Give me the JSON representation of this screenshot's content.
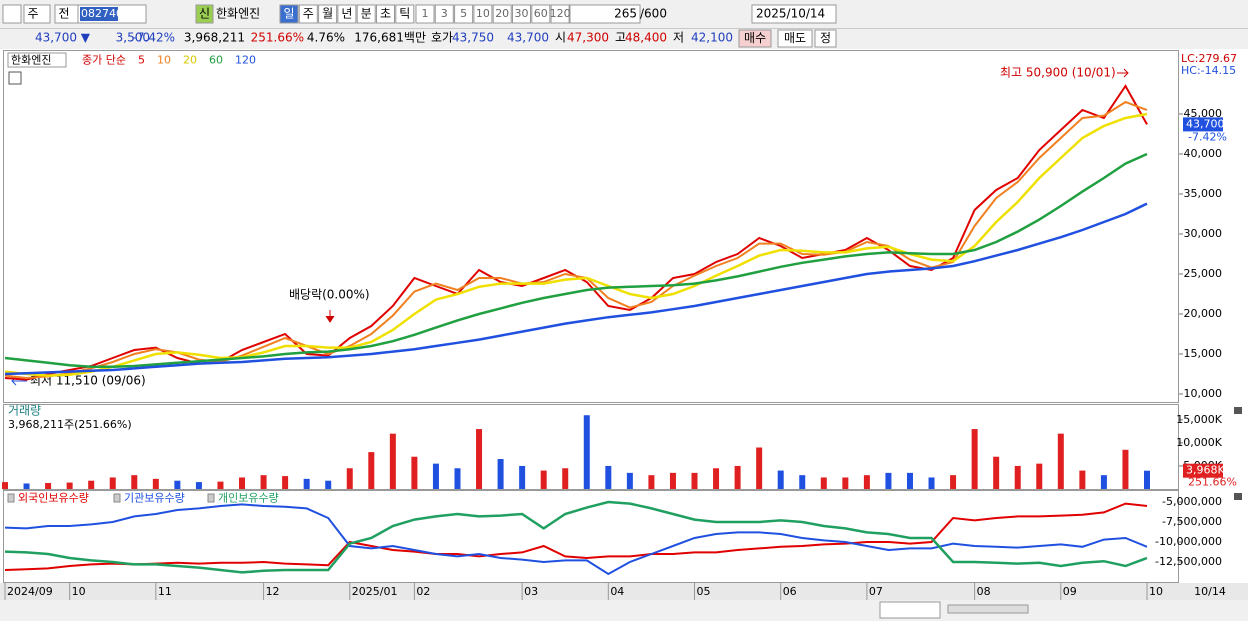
{
  "toolbar": {
    "left_buttons": [
      "주",
      "전"
    ],
    "code": "082740",
    "badge": "신",
    "stock_name": "한화엔진",
    "period_buttons": [
      "일",
      "주",
      "월",
      "년",
      "분",
      "초",
      "틱"
    ],
    "interval_buttons": [
      "1",
      "3",
      "5",
      "10",
      "20",
      "30",
      "60",
      "120"
    ],
    "count": "265",
    "max_count": "/600",
    "date": "2025/10/14"
  },
  "quote": {
    "price": "43,700 ▼",
    "change": "3,500",
    "change_rate": "-7.42%",
    "volume": "3,968,211",
    "volume_ratio": "251.66%",
    "turnover": "4.76%",
    "amount": "176,681백만",
    "ask_label": "호가",
    "ask": "43,750",
    "bid": "43,700",
    "open_label": "시",
    "open": "47,300",
    "high_label": "고",
    "high": "48,400",
    "low_label": "저",
    "low": "42,100",
    "buy": "매수",
    "sell": "매도",
    "correct": "정"
  },
  "chart_data": [
    {
      "type": "line",
      "name": "한화엔진",
      "legend_prefix": "종가 단순",
      "categories": [
        "2024/09",
        null,
        null,
        "10",
        null,
        null,
        null,
        "11",
        null,
        null,
        null,
        null,
        "12",
        null,
        null,
        null,
        "2025/01",
        null,
        null,
        "02",
        null,
        null,
        null,
        null,
        "03",
        null,
        null,
        null,
        "04",
        null,
        null,
        null,
        "05",
        null,
        null,
        null,
        "06",
        null,
        null,
        null,
        "07",
        null,
        null,
        null,
        null,
        "08",
        null,
        null,
        null,
        "09",
        null,
        null,
        null,
        "10"
      ],
      "series": [
        {
          "name": "5",
          "color": "#e00000",
          "values": [
            12000,
            11800,
            12500,
            13000,
            13500,
            14500,
            15500,
            15800,
            14500,
            13800,
            14000,
            15500,
            16500,
            17500,
            15000,
            14800,
            17000,
            18500,
            21000,
            24500,
            23500,
            22500,
            25500,
            24000,
            23500,
            24500,
            25500,
            24000,
            21000,
            20500,
            22000,
            24500,
            25000,
            26500,
            27500,
            29500,
            28500,
            27000,
            27500,
            28000,
            29500,
            28000,
            26000,
            25500,
            27000,
            33000,
            35500,
            37000,
            40500,
            43000,
            45500,
            44500,
            48500,
            43700
          ]
        },
        {
          "name": "10",
          "color": "#f08020",
          "values": [
            12300,
            12000,
            12200,
            12600,
            13200,
            14000,
            15000,
            15600,
            15200,
            14300,
            14000,
            14800,
            15900,
            17000,
            16000,
            15000,
            16000,
            17500,
            19800,
            22800,
            23800,
            23000,
            24500,
            24500,
            23800,
            24000,
            25000,
            24500,
            22000,
            20800,
            21500,
            23500,
            24800,
            26000,
            27000,
            28800,
            28800,
            27500,
            27400,
            27800,
            29000,
            28500,
            26800,
            25800,
            26500,
            31000,
            34500,
            36500,
            39500,
            42000,
            44500,
            44800,
            46500,
            45500
          ]
        },
        {
          "name": "20",
          "color": "#f0e000",
          "values": [
            12800,
            12500,
            12300,
            12400,
            12800,
            13400,
            14200,
            15000,
            15200,
            14900,
            14500,
            14600,
            15200,
            16000,
            16000,
            15800,
            15800,
            16500,
            18000,
            20000,
            21800,
            22500,
            23400,
            23800,
            23800,
            23800,
            24300,
            24500,
            23500,
            22500,
            22000,
            22500,
            23500,
            24800,
            26000,
            27300,
            28000,
            27900,
            27700,
            27700,
            28200,
            28400,
            27500,
            26800,
            26600,
            28500,
            31500,
            34000,
            37000,
            39500,
            42000,
            43500,
            44500,
            45000
          ]
        },
        {
          "name": "60",
          "color": "#20a040",
          "values": [
            14500,
            14200,
            13900,
            13600,
            13400,
            13400,
            13500,
            13700,
            13900,
            14100,
            14300,
            14500,
            14700,
            15000,
            15200,
            15300,
            15600,
            16000,
            16600,
            17400,
            18300,
            19200,
            20000,
            20700,
            21400,
            22000,
            22500,
            23000,
            23300,
            23400,
            23500,
            23600,
            23800,
            24200,
            24700,
            25300,
            25900,
            26400,
            26800,
            27200,
            27500,
            27700,
            27600,
            27500,
            27500,
            28000,
            29000,
            30300,
            31800,
            33500,
            35300,
            37000,
            38800,
            40000
          ]
        },
        {
          "name": "120",
          "color": "#2050e0",
          "values": [
            12500,
            12600,
            12700,
            12800,
            12900,
            13000,
            13200,
            13400,
            13600,
            13800,
            13900,
            14000,
            14200,
            14400,
            14500,
            14600,
            14800,
            15000,
            15300,
            15600,
            16000,
            16400,
            16800,
            17300,
            17800,
            18300,
            18800,
            19200,
            19600,
            19900,
            20200,
            20600,
            21000,
            21500,
            22000,
            22500,
            23000,
            23500,
            24000,
            24500,
            25000,
            25300,
            25500,
            25700,
            26000,
            26600,
            27300,
            28000,
            28800,
            29600,
            30500,
            31500,
            32500,
            33800
          ]
        }
      ],
      "ylim": [
        9000,
        52750
      ],
      "yticks": [
        {
          "value": 10000,
          "label": "10,000"
        },
        {
          "value": 15000,
          "label": "15,000"
        },
        {
          "value": 20000,
          "label": "20,000"
        },
        {
          "value": 25000,
          "label": "25,000"
        },
        {
          "value": 30000,
          "label": "30,000"
        },
        {
          "value": 35000,
          "label": "35,000"
        },
        {
          "value": 40000,
          "label": "40,000"
        },
        {
          "value": 45000,
          "label": "45,000"
        }
      ],
      "annotations": {
        "high": "최고 50,900 (10/01)",
        "low": "최저 11,510 (09/06)",
        "dividend": "배당락(0.00%)"
      },
      "lc_label": "LC:279.67",
      "hc_label": "HC:-14.15",
      "last_value_label": "43,700",
      "last_change_label": "-7.42%"
    },
    {
      "type": "bar",
      "name": "거래량",
      "summary": "3,968,211주(251.66%)",
      "up_color": "#e02020",
      "down_color": "#2050e0",
      "values": [
        1500,
        1200,
        1300,
        1400,
        1800,
        2500,
        3000,
        2200,
        1800,
        1500,
        1600,
        2500,
        3000,
        2800,
        2200,
        1800,
        4500,
        8000,
        12000,
        7000,
        5500,
        4500,
        13000,
        6500,
        5000,
        4000,
        4500,
        16000,
        5000,
        3500,
        3000,
        3500,
        3500,
        4500,
        5000,
        9000,
        4000,
        3000,
        2500,
        2500,
        3000,
        3500,
        3500,
        2500,
        3000,
        13000,
        7000,
        5000,
        5500,
        12000,
        4000,
        3000,
        8500,
        3968
      ],
      "ylim": [
        0,
        18000
      ],
      "yticks": [
        {
          "value": 5000,
          "label": "5,000K"
        },
        {
          "value": 10000,
          "label": "10,000K"
        },
        {
          "value": 15000,
          "label": "15,000K"
        }
      ],
      "last_value_label": "3,968K",
      "last_ratio_label": "251.66%"
    },
    {
      "type": "line",
      "x_end_label": "10/14",
      "series": [
        {
          "name": "외국인보유수량",
          "color": "#e00000",
          "values": [
            -13500000,
            -13400000,
            -13300000,
            -13000000,
            -12800000,
            -12700000,
            -12800000,
            -12700000,
            -12600000,
            -12700000,
            -12600000,
            -12600000,
            -12500000,
            -12700000,
            -12800000,
            -12900000,
            -10000000,
            -10500000,
            -11000000,
            -11200000,
            -11500000,
            -11500000,
            -11800000,
            -11500000,
            -11300000,
            -10500000,
            -11800000,
            -12000000,
            -11800000,
            -11800000,
            -11500000,
            -11500000,
            -11300000,
            -11300000,
            -11000000,
            -10800000,
            -10600000,
            -10500000,
            -10300000,
            -10200000,
            -10000000,
            -10000000,
            -10200000,
            -10000000,
            -7000000,
            -7300000,
            -7000000,
            -6800000,
            -6800000,
            -6700000,
            -6600000,
            -6300000,
            -5200000,
            -5500000
          ]
        },
        {
          "name": "기관보유수량",
          "color": "#2050e0",
          "values": [
            -8200000,
            -8300000,
            -8000000,
            -8000000,
            -7800000,
            -7500000,
            -6800000,
            -6500000,
            -6000000,
            -5800000,
            -5500000,
            -5300000,
            -5500000,
            -5600000,
            -5800000,
            -7000000,
            -10500000,
            -10800000,
            -10500000,
            -11000000,
            -11500000,
            -11800000,
            -11500000,
            -12000000,
            -12200000,
            -12500000,
            -12300000,
            -12300000,
            -14000000,
            -12500000,
            -11500000,
            -10500000,
            -9500000,
            -9000000,
            -8800000,
            -8800000,
            -9000000,
            -9500000,
            -9800000,
            -10000000,
            -10500000,
            -11000000,
            -10800000,
            -10800000,
            -10200000,
            -10500000,
            -10600000,
            -10700000,
            -10500000,
            -10300000,
            -10600000,
            -9700000,
            -9500000,
            -10600000
          ]
        },
        {
          "name": "개인보유수량",
          "color": "#20a060",
          "values": [
            -11200000,
            -11300000,
            -11500000,
            -12000000,
            -12300000,
            -12500000,
            -12800000,
            -12800000,
            -13000000,
            -13200000,
            -13500000,
            -13800000,
            -13600000,
            -13500000,
            -13500000,
            -13500000,
            -10200000,
            -9500000,
            -8000000,
            -7200000,
            -6800000,
            -6500000,
            -6800000,
            -6700000,
            -6500000,
            -8300000,
            -6500000,
            -5700000,
            -5000000,
            -5200000,
            -5800000,
            -6500000,
            -7200000,
            -7500000,
            -7500000,
            -7500000,
            -7300000,
            -7500000,
            -8000000,
            -8300000,
            -8800000,
            -9000000,
            -9500000,
            -9500000,
            -12500000,
            -12500000,
            -12600000,
            -12700000,
            -12600000,
            -13000000,
            -12600000,
            -12400000,
            -13000000,
            -12000000
          ]
        }
      ],
      "ylim": [
        -15000000,
        -3750000
      ],
      "yticks": [
        {
          "value": -5000000,
          "label": "-5,000,000"
        },
        {
          "value": -7500000,
          "label": "-7,500,000"
        },
        {
          "value": -10000000,
          "label": "-10,000,000"
        },
        {
          "value": -12500000,
          "label": "-12,500,000"
        }
      ]
    }
  ]
}
